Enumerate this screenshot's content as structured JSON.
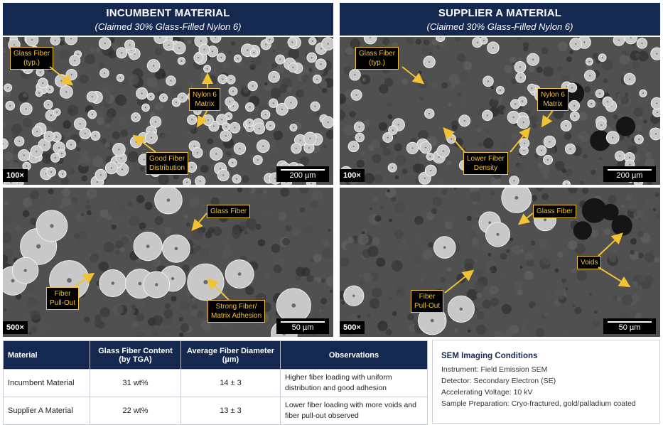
{
  "left": {
    "title": "INCUMBENT MATERIAL",
    "subtitle": "(Claimed 30% Glass-Filled Nylon 6)",
    "low": {
      "mag": "100×",
      "scale": "200 µm",
      "callouts": {
        "glass": "Glass Fiber\n(typ.)",
        "nylon": "Nylon 6\nMatrix",
        "dist": "Good Fiber\nDistribution"
      }
    },
    "high": {
      "mag": "500×",
      "scale": "50 µm",
      "callouts": {
        "glass": "Glass Fiber",
        "pullout": "Fiber\nPull-Out",
        "adhesion": "Strong Fiber/\nMatrix Adhesion"
      }
    }
  },
  "right": {
    "title": "SUPPLIER A MATERIAL",
    "subtitle": "(Claimed 30% Glass-Filled Nylon 6)",
    "low": {
      "mag": "100×",
      "scale": "200 µm",
      "callouts": {
        "glass": "Glass Fiber\n(typ.)",
        "nylon": "Nylon 6\nMatrix",
        "density": "Lower Fiber\nDensity"
      }
    },
    "high": {
      "mag": "500×",
      "scale": "50 µm",
      "callouts": {
        "glass": "Glass Fiber",
        "voids": "Voids",
        "pullout": "Fiber\nPull-Out"
      }
    }
  },
  "table": {
    "headers": [
      "Material",
      "Glass Fiber Content\n(by TGA)",
      "Average Fiber Diameter\n(µm)",
      "Observations"
    ],
    "rows": [
      [
        "Incumbent Material",
        "31 wt%",
        "14 ± 3",
        "Higher fiber loading with uniform distribution and good adhesion"
      ],
      [
        "Supplier A Material",
        "22 wt%",
        "13 ± 3",
        "Lower fiber loading with more voids and fiber pull-out observed"
      ]
    ]
  },
  "conditions": {
    "title": "SEM Imaging Conditions",
    "lines": [
      "Instrument: Field Emission SEM",
      "Detector: Secondary Electron (SE)",
      "Accelerating Voltage: 10 kV",
      "Sample Preparation: Cryo-fractured, gold/palladium coated"
    ]
  },
  "colors": {
    "header_bg": "#15284f",
    "callout_border": "#f1c232",
    "callout_text": "#f1c232",
    "arrow": "#f1c232"
  }
}
